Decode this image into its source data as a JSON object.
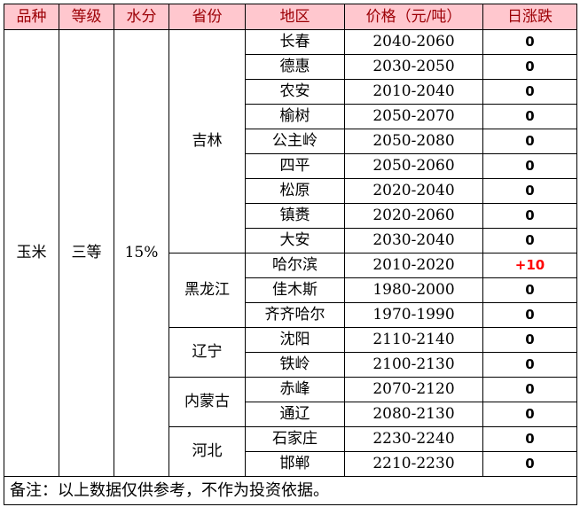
{
  "headers": [
    "品种",
    "等级",
    "水分",
    "省份",
    "地区",
    "价格（元/吨）",
    "日涨跌"
  ],
  "variety": "玉米",
  "grade": "三等",
  "moisture": "15%",
  "provinces": [
    {
      "name": "吉林",
      "rows": [
        {
          "area": "长春",
          "price": "2040-2060",
          "change": "0"
        },
        {
          "area": "德惠",
          "price": "2030-2050",
          "change": "0"
        },
        {
          "area": "农安",
          "price": "2010-2040",
          "change": "0"
        },
        {
          "area": "榆树",
          "price": "2050-2070",
          "change": "0"
        },
        {
          "area": "公主岭",
          "price": "2050-2080",
          "change": "0"
        },
        {
          "area": "四平",
          "price": "2050-2060",
          "change": "0"
        },
        {
          "area": "松原",
          "price": "2020-2040",
          "change": "0"
        },
        {
          "area": "镇赉",
          "price": "2020-2060",
          "change": "0"
        },
        {
          "area": "大安",
          "price": "2030-2040",
          "change": "0"
        }
      ]
    },
    {
      "name": "黑龙江",
      "rows": [
        {
          "area": "哈尔滨",
          "price": "2010-2020",
          "change": "+10"
        },
        {
          "area": "佳木斯",
          "price": "1980-2000",
          "change": "0"
        },
        {
          "area": "齐齐哈尔",
          "price": "1970-1990",
          "change": "0"
        }
      ]
    },
    {
      "name": "辽宁",
      "rows": [
        {
          "area": "沈阳",
          "price": "2110-2140",
          "change": "0"
        },
        {
          "area": "铁岭",
          "price": "2100-2130",
          "change": "0"
        }
      ]
    },
    {
      "name": "内蒙古",
      "rows": [
        {
          "area": "赤峰",
          "price": "2070-2120",
          "change": "0"
        },
        {
          "area": "通辽",
          "price": "2080-2130",
          "change": "0"
        }
      ]
    },
    {
      "name": "河北",
      "rows": [
        {
          "area": "石家庄",
          "price": "2230-2240",
          "change": "0"
        },
        {
          "area": "邯郸",
          "price": "2210-2230",
          "change": "0"
        }
      ]
    }
  ],
  "note": "备注：以上数据仅供参考，不作为投资依据。",
  "colors": {
    "header_bg": "#ffc7ce",
    "header_text": "#9c0006",
    "rise": "#ff0000",
    "flat": "#000000"
  }
}
